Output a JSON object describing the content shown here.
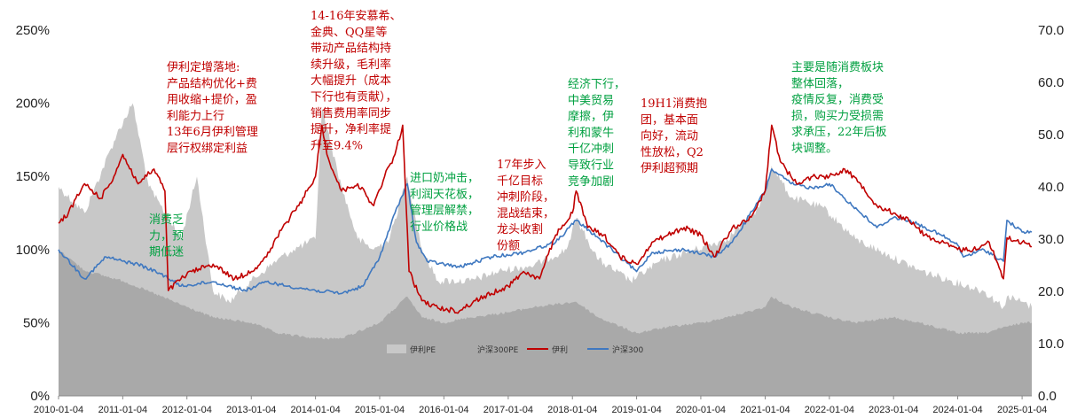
{
  "chart_data": {
    "type": "line",
    "x_range": [
      "2010-01-04",
      "2025-02-28"
    ],
    "x_ticks": [
      "2010-01-04",
      "2011-01-04",
      "2012-01-04",
      "2013-01-04",
      "2014-01-04",
      "2015-01-04",
      "2016-01-04",
      "2017-01-04",
      "2018-01-04",
      "2019-01-04",
      "2020-01-04",
      "2021-01-04",
      "2022-01-04",
      "2023-01-04",
      "2024-01-04",
      "2025-01-04"
    ],
    "y_left": {
      "ticks": [
        "0%",
        "50%",
        "100%",
        "150%",
        "200%",
        "250%"
      ],
      "range": [
        0,
        250
      ]
    },
    "y_right": {
      "ticks": [
        "0.0",
        "10.0",
        "20.0",
        "30.0",
        "40.0",
        "50.0",
        "60.0",
        "70.0"
      ],
      "range": [
        0,
        70
      ]
    },
    "legend": [
      {
        "name": "伊利PE",
        "color": "#c8c8c8",
        "kind": "area"
      },
      {
        "name": "沪深300PE",
        "color": "#a9a9a9",
        "kind": "area"
      },
      {
        "name": "伊利",
        "color": "#c00000",
        "kind": "line"
      },
      {
        "name": "沪深300",
        "color": "#3f78c0",
        "kind": "line"
      }
    ],
    "series": [
      {
        "name": "伊利",
        "axis": "left",
        "x": [
          "2010-01-04",
          "2010-03-01",
          "2010-06-01",
          "2010-09-01",
          "2010-11-15",
          "2011-01-04",
          "2011-04-01",
          "2011-07-01",
          "2011-09-01",
          "2011-09-20",
          "2011-12-01",
          "2012-02-01",
          "2012-06-01",
          "2012-10-01",
          "2013-01-04",
          "2013-04-01",
          "2013-07-01",
          "2013-10-01",
          "2014-01-04",
          "2014-02-10",
          "2014-03-10",
          "2014-06-01",
          "2014-09-01",
          "2014-12-01",
          "2015-02-01",
          "2015-04-01",
          "2015-05-15",
          "2015-06-20",
          "2015-09-01",
          "2015-12-01",
          "2016-04-01",
          "2016-07-01",
          "2016-10-01",
          "2017-01-04",
          "2017-04-01",
          "2017-07-01",
          "2017-10-01",
          "2018-01-04",
          "2018-01-25",
          "2018-04-01",
          "2018-07-01",
          "2018-10-01",
          "2019-01-04",
          "2019-04-01",
          "2019-07-01",
          "2019-10-01",
          "2020-01-04",
          "2020-03-20",
          "2020-07-01",
          "2020-10-01",
          "2021-01-04",
          "2021-02-10",
          "2021-04-01",
          "2021-07-01",
          "2021-10-01",
          "2022-01-04",
          "2022-04-01",
          "2022-07-01",
          "2022-10-01",
          "2023-01-04",
          "2023-04-01",
          "2023-07-01",
          "2023-10-01",
          "2024-01-04",
          "2024-04-01",
          "2024-07-01",
          "2024-09-20",
          "2024-10-10",
          "2025-01-04",
          "2025-02-28"
        ],
        "values": [
          118,
          125,
          145,
          135,
          150,
          165,
          145,
          155,
          140,
          72,
          80,
          85,
          90,
          80,
          85,
          95,
          115,
          130,
          150,
          185,
          165,
          140,
          145,
          130,
          150,
          165,
          185,
          85,
          65,
          60,
          58,
          65,
          70,
          75,
          85,
          80,
          110,
          125,
          140,
          115,
          110,
          95,
          90,
          105,
          110,
          115,
          110,
          95,
          115,
          120,
          140,
          185,
          160,
          145,
          150,
          150,
          155,
          145,
          130,
          125,
          120,
          110,
          105,
          100,
          100,
          105,
          80,
          108,
          105,
          102
        ]
      },
      {
        "name": "沪深300",
        "axis": "left",
        "x": [
          "2010-01-04",
          "2010-06-01",
          "2010-10-01",
          "2011-01-04",
          "2011-04-01",
          "2011-09-01",
          "2011-12-01",
          "2012-06-01",
          "2012-12-01",
          "2013-04-01",
          "2013-08-01",
          "2014-01-04",
          "2014-06-01",
          "2014-10-01",
          "2015-01-04",
          "2015-04-01",
          "2015-06-10",
          "2015-08-01",
          "2015-10-01",
          "2016-01-04",
          "2016-04-01",
          "2016-10-01",
          "2017-04-01",
          "2017-10-01",
          "2018-01-25",
          "2018-06-01",
          "2018-10-01",
          "2019-01-04",
          "2019-04-01",
          "2019-10-01",
          "2020-03-20",
          "2020-07-01",
          "2021-01-04",
          "2021-02-10",
          "2021-06-01",
          "2021-10-01",
          "2022-01-04",
          "2022-04-01",
          "2022-10-01",
          "2023-01-04",
          "2023-04-01",
          "2023-10-01",
          "2024-01-04",
          "2024-02-05",
          "2024-06-01",
          "2024-09-20",
          "2024-10-10",
          "2025-01-04",
          "2025-02-28"
        ],
        "values": [
          100,
          80,
          95,
          92,
          90,
          82,
          75,
          78,
          72,
          78,
          75,
          72,
          70,
          75,
          95,
          125,
          145,
          105,
          92,
          90,
          88,
          95,
          98,
          105,
          120,
          108,
          95,
          85,
          98,
          100,
          95,
          105,
          140,
          155,
          145,
          142,
          145,
          135,
          115,
          122,
          120,
          110,
          103,
          95,
          100,
          92,
          120,
          112,
          112
        ]
      },
      {
        "name": "伊利PE",
        "axis": "right",
        "x": [
          "2010-01-04",
          "2010-06-01",
          "2010-12-01",
          "2011-03-01",
          "2011-06-01",
          "2011-09-01",
          "2011-12-01",
          "2012-03-01",
          "2012-06-01",
          "2012-09-01",
          "2013-01-04",
          "2013-06-01",
          "2013-09-01",
          "2014-01-04",
          "2014-02-10",
          "2014-06-01",
          "2014-09-01",
          "2014-12-01",
          "2015-03-01",
          "2015-06-10",
          "2015-09-01",
          "2015-12-01",
          "2016-06-01",
          "2016-12-01",
          "2017-06-01",
          "2017-12-01",
          "2018-01-25",
          "2018-06-01",
          "2018-12-01",
          "2019-06-01",
          "2019-12-01",
          "2020-06-01",
          "2020-12-01",
          "2021-02-10",
          "2021-06-01",
          "2021-12-01",
          "2022-06-01",
          "2022-12-01",
          "2023-06-01",
          "2023-12-01",
          "2024-06-01",
          "2024-09-20",
          "2024-10-10",
          "2025-01-04",
          "2025-02-28"
        ],
        "values": [
          40,
          35,
          50,
          56,
          40,
          35,
          30,
          42,
          20,
          18,
          22,
          26,
          28,
          30,
          55,
          40,
          30,
          28,
          30,
          42,
          28,
          22,
          22,
          24,
          25,
          28,
          34,
          26,
          22,
          26,
          28,
          30,
          36,
          44,
          38,
          36,
          30,
          27,
          24,
          22,
          20,
          17,
          19,
          18,
          17
        ]
      },
      {
        "name": "沪深300PE",
        "axis": "right",
        "x": [
          "2010-01-04",
          "2010-06-01",
          "2011-01-04",
          "2011-06-01",
          "2012-01-04",
          "2012-06-01",
          "2013-01-04",
          "2013-06-01",
          "2014-01-04",
          "2014-06-01",
          "2015-01-04",
          "2015-06-10",
          "2015-09-01",
          "2016-01-04",
          "2016-06-01",
          "2017-01-04",
          "2017-06-01",
          "2018-01-25",
          "2018-06-01",
          "2019-01-04",
          "2019-06-01",
          "2020-01-04",
          "2020-06-01",
          "2021-01-04",
          "2021-02-10",
          "2021-06-01",
          "2022-01-04",
          "2022-06-01",
          "2023-01-04",
          "2023-06-01",
          "2024-01-04",
          "2024-06-01",
          "2025-01-04",
          "2025-02-28"
        ],
        "values": [
          28,
          24,
          22,
          20,
          17,
          15,
          14,
          12,
          11,
          11,
          14,
          19,
          15,
          14,
          15,
          16,
          17,
          18,
          15,
          12,
          13,
          14,
          15,
          17,
          19,
          17,
          15,
          14,
          15,
          14,
          12,
          12,
          14,
          14
        ]
      }
    ],
    "annotations": [
      {
        "color": "#c00000",
        "lines": [
          "伊利定增落地:",
          "产品结构优化+费",
          "用收缩+提价，盈",
          "利能力上行",
          "13年6月伊利管理",
          "层行权绑定利益"
        ]
      },
      {
        "color": "#c00000",
        "lines": [
          "14-16年安慕希、",
          "金典、QQ星等",
          "带动产品结构持",
          "续升级，毛利率",
          "大幅提升（成本",
          "下行也有贡献），",
          "销售费用率同步",
          "提升，净利率提",
          "升至9.4%"
        ]
      },
      {
        "color": "#00a040",
        "lines": [
          "消费乏",
          "力，预",
          "期低迷"
        ]
      },
      {
        "color": "#00a040",
        "lines": [
          "进口奶冲击，",
          "利润天花板，",
          "管理层解禁，",
          "行业价格战"
        ]
      },
      {
        "color": "#c00000",
        "lines": [
          "17年步入",
          "千亿目标",
          "冲刺阶段，",
          "混战结束，",
          "龙头收割",
          "份额"
        ]
      },
      {
        "color": "#00a040",
        "lines": [
          "经济下行，",
          "中美贸易",
          "摩擦，伊",
          "利和蒙牛",
          "千亿冲刺",
          "导致行业",
          "竞争加剧"
        ]
      },
      {
        "color": "#c00000",
        "lines": [
          "19H1消费抱",
          "团，基本面",
          "向好，流动",
          "性放松，Q2",
          "伊利超预期"
        ]
      },
      {
        "color": "#00a040",
        "lines": [
          "主要是随消费板块",
          "整体回落，",
          "疫情反复，消费受",
          "损，购买力受损需",
          "求承压，22年后板",
          "块调整。"
        ]
      }
    ]
  }
}
